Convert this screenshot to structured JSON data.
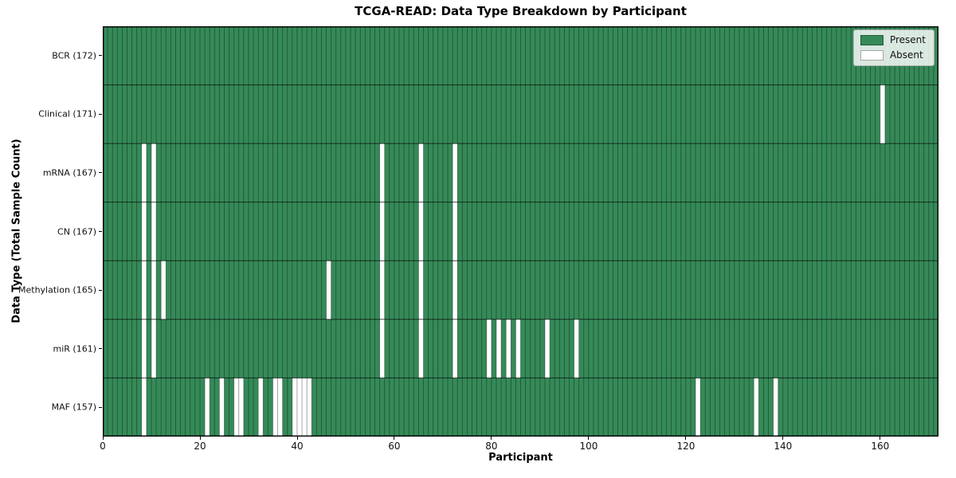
{
  "chart_data": {
    "type": "heatmap",
    "title": "TCGA-READ: Data Type Breakdown by Participant",
    "xlabel": "Participant",
    "ylabel": "Data Type (Total Sample Count)",
    "x_ticks": [
      0,
      20,
      40,
      60,
      80,
      100,
      120,
      140,
      160
    ],
    "x_max": 172,
    "grid": true,
    "legend_position": "upper right",
    "legend": [
      {
        "label": "Present",
        "color": "#358a58"
      },
      {
        "label": "Absent",
        "color": "#ffffff"
      }
    ],
    "colors": {
      "present": "#358a58",
      "absent": "#ffffff",
      "column_grid": "rgba(0,0,0,0.42)",
      "row_grid": "rgba(0,0,0,0.6)",
      "frame": "#000000"
    },
    "rows": [
      {
        "label": "BCR (172)",
        "data_type": "BCR",
        "total_samples": 172,
        "absent_participants": []
      },
      {
        "label": "Clinical (171)",
        "data_type": "Clinical",
        "total_samples": 171,
        "absent_participants": [
          160
        ]
      },
      {
        "label": "mRNA (167)",
        "data_type": "mRNA",
        "total_samples": 167,
        "absent_participants": [
          8,
          10,
          57,
          65,
          72
        ]
      },
      {
        "label": "CN (167)",
        "data_type": "CN",
        "total_samples": 167,
        "absent_participants": [
          8,
          10,
          57,
          65,
          72
        ]
      },
      {
        "label": "Methylation (165)",
        "data_type": "Methylation",
        "total_samples": 165,
        "absent_participants": [
          8,
          10,
          12,
          46,
          57,
          65,
          72
        ]
      },
      {
        "label": "miR (161)",
        "data_type": "miR",
        "total_samples": 161,
        "absent_participants": [
          8,
          10,
          57,
          65,
          72,
          79,
          81,
          83,
          85,
          91,
          97
        ]
      },
      {
        "label": "MAF (157)",
        "data_type": "MAF",
        "total_samples": 157,
        "absent_participants": [
          8,
          21,
          24,
          27,
          28,
          32,
          35,
          36,
          39,
          40,
          41,
          42,
          122,
          134,
          138
        ]
      }
    ]
  }
}
